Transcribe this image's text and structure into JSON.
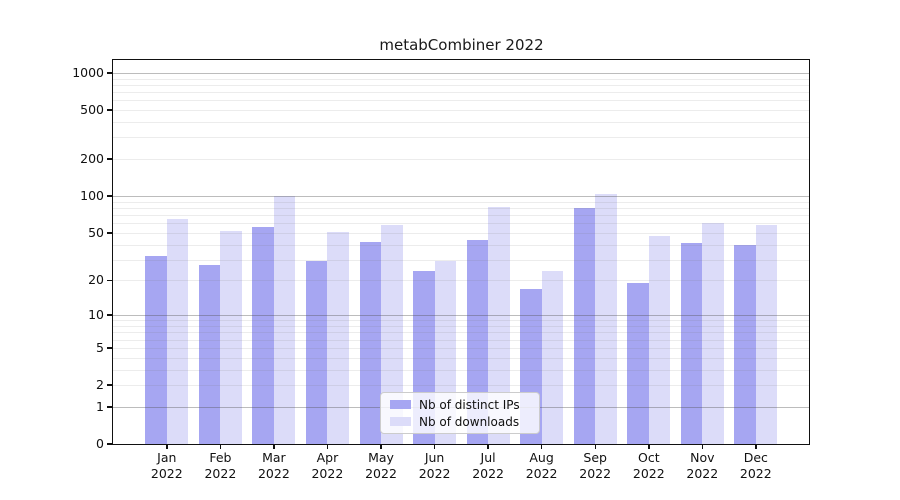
{
  "title": "metabCombiner 2022",
  "chart_data": {
    "type": "bar",
    "title": "metabCombiner 2022",
    "categories": [
      "Jan",
      "Feb",
      "Mar",
      "Apr",
      "May",
      "Jun",
      "Jul",
      "Aug",
      "Sep",
      "Oct",
      "Nov",
      "Dec"
    ],
    "year_label": "2022",
    "series": [
      {
        "name": "Nb of distinct IPs",
        "color": "#a6a6f2",
        "values": [
          32,
          27,
          56,
          29,
          42,
          24,
          44,
          17,
          80,
          19,
          41,
          40
        ]
      },
      {
        "name": "Nb of downloads",
        "color": "#dcdcf9",
        "values": [
          65,
          52,
          100,
          51,
          58,
          29,
          81,
          24,
          104,
          47,
          60,
          58
        ]
      }
    ],
    "xlabel": "",
    "ylabel": "",
    "yscale": "log1p",
    "yticks": [
      0,
      1,
      2,
      5,
      10,
      20,
      50,
      100,
      200,
      500,
      1000
    ],
    "ylim": [
      0,
      1200
    ],
    "grid": "on, minor and major horizontal lines drawn over bars",
    "legend_position": "lower center"
  }
}
